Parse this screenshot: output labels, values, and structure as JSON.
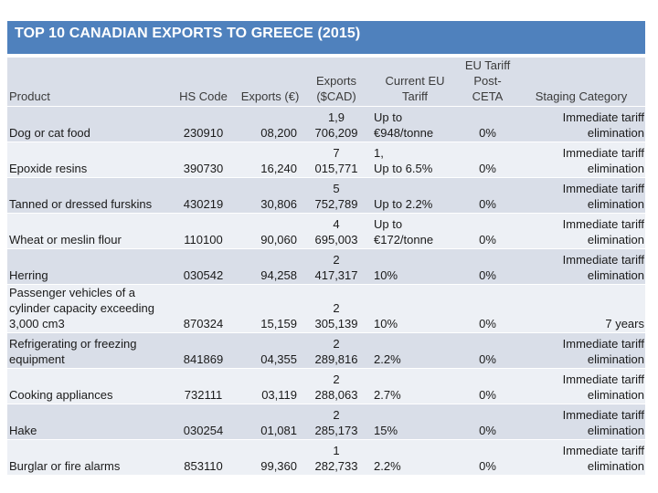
{
  "title": "TOP 10 CANADIAN EXPORTS TO GREECE (2015)",
  "headers": {
    "product": "Product",
    "hs_code": "HS Code",
    "exports_eur": "Exports (€)",
    "exports_cad_line1": "Exports",
    "exports_cad_line2": "($CAD)",
    "current_tariff_line1": "Current EU",
    "current_tariff_line2": "Tariff",
    "post_ceta_line1": "EU Tariff",
    "post_ceta_line2": "Post-",
    "post_ceta_line3": "CETA",
    "staging": "Staging Category"
  },
  "rows": [
    {
      "product": "Dog or cat food",
      "hs_code": "230910",
      "exports_eur": "08,200",
      "cad_top": "1,9",
      "cad_bottom": "706,209",
      "tariff_top": "Up to",
      "tariff_bottom": "€948/tonne",
      "post_ceta": "0%",
      "staging_top": "Immediate tariff",
      "staging_bottom": "elimination"
    },
    {
      "product": "Epoxide resins",
      "hs_code": "390730",
      "exports_eur": "16,240",
      "cad_top": "7",
      "cad_bottom": "015,771",
      "tariff_top": "1,",
      "tariff_bottom": "Up to 6.5%",
      "post_ceta": "0%",
      "staging_top": "Immediate tariff",
      "staging_bottom": "elimination"
    },
    {
      "product": "Tanned or dressed furskins",
      "hs_code": "430219",
      "exports_eur": "30,806",
      "cad_top": "5",
      "cad_bottom": "752,789",
      "tariff_top": "",
      "tariff_bottom": "Up to 2.2%",
      "post_ceta": "0%",
      "staging_top": "Immediate tariff",
      "staging_bottom": "elimination"
    },
    {
      "product": "Wheat or meslin flour",
      "hs_code": "110100",
      "exports_eur": "90,060",
      "cad_top": "4",
      "cad_bottom": "695,003",
      "tariff_top": "Up to",
      "tariff_bottom": "€172/tonne",
      "post_ceta": "0%",
      "staging_top": "Immediate tariff",
      "staging_bottom": "elimination"
    },
    {
      "product": "Herring",
      "hs_code": "030542",
      "exports_eur": "94,258",
      "cad_top": "2",
      "cad_bottom": "417,317",
      "tariff_top": "",
      "tariff_bottom": "10%",
      "post_ceta": "0%",
      "staging_top": "Immediate tariff",
      "staging_bottom": "elimination"
    },
    {
      "product": "Passenger vehicles of a cylinder capacity exceeding 3,000 cm3",
      "hs_code": "870324",
      "exports_eur": "15,159",
      "cad_top": "2",
      "cad_bottom": "305,139",
      "tariff_top": "",
      "tariff_bottom": "10%",
      "post_ceta": "0%",
      "staging_top": "",
      "staging_bottom": "7 years"
    },
    {
      "product": "Refrigerating or freezing equipment",
      "hs_code": "841869",
      "exports_eur": "04,355",
      "cad_top": "2",
      "cad_bottom": "289,816",
      "tariff_top": "",
      "tariff_bottom": "2.2%",
      "post_ceta": "0%",
      "staging_top": "Immediate tariff",
      "staging_bottom": "elimination"
    },
    {
      "product": "Cooking appliances",
      "hs_code": "732111",
      "exports_eur": "03,119",
      "cad_top": "2",
      "cad_bottom": "288,063",
      "tariff_top": "",
      "tariff_bottom": "2.7%",
      "post_ceta": "0%",
      "staging_top": "Immediate tariff",
      "staging_bottom": "elimination"
    },
    {
      "product": "Hake",
      "hs_code": "030254",
      "exports_eur": "01,081",
      "cad_top": "2",
      "cad_bottom": "285,173",
      "tariff_top": "",
      "tariff_bottom": "15%",
      "post_ceta": "0%",
      "staging_top": "Immediate tariff",
      "staging_bottom": "elimination"
    },
    {
      "product": "Burglar or fire alarms",
      "hs_code": "853110",
      "exports_eur": "99,360",
      "cad_top": "1",
      "cad_bottom": "282,733",
      "tariff_top": "",
      "tariff_bottom": "2.2%",
      "post_ceta": "0%",
      "staging_top": "Immediate tariff",
      "staging_bottom": "elimination"
    }
  ]
}
